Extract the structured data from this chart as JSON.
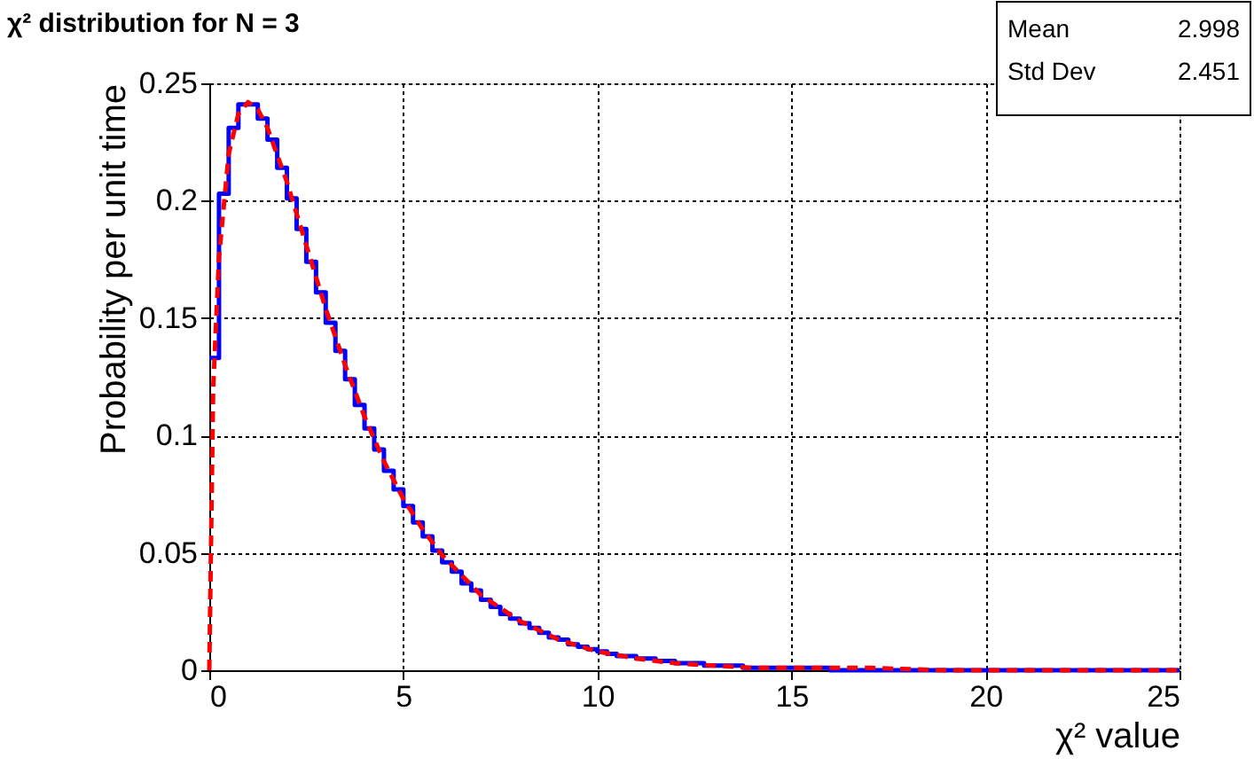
{
  "chart_data": {
    "type": "histogram",
    "title": "χ² distribution for N = 3",
    "xlabel": "χ² value",
    "ylabel": "Probability per unit time",
    "annotations": [
      "Mean 2.998",
      "Std Dev 2.451"
    ],
    "bins": [
      0,
      0.25,
      0.5,
      0.75,
      1,
      1.25,
      1.5,
      1.75,
      2,
      2.25,
      2.5,
      2.75,
      3,
      3.25,
      3.5,
      3.75,
      4,
      4.25,
      4.5,
      4.75,
      5,
      5.25,
      5.5,
      5.75,
      6,
      6.25,
      6.5,
      6.75,
      7,
      7.25,
      7.5,
      7.75,
      8,
      8.25,
      8.5,
      8.75,
      9,
      9.25,
      9.5,
      9.75,
      10,
      10.25,
      10.5,
      10.75,
      11,
      11.25,
      11.5,
      11.75,
      12,
      12.25,
      12.5,
      12.75,
      13,
      13.25,
      13.5,
      13.75,
      14,
      14.25,
      14.5,
      14.75,
      15,
      15.25,
      15.5,
      15.75,
      16,
      16.25,
      16.5,
      16.75,
      17,
      17.25,
      17.5,
      17.75,
      18,
      18.25,
      18.5,
      18.75,
      19,
      19.25,
      19.5,
      19.75,
      20,
      20.25,
      20.5,
      20.75,
      21,
      21.25,
      21.5,
      21.75,
      22,
      22.25,
      22.5,
      22.75,
      23,
      23.25,
      23.5,
      23.75,
      24,
      24.25,
      24.5,
      24.75,
      25
    ],
    "values": [
      0.133,
      0.203,
      0.231,
      0.241,
      0.241,
      0.235,
      0.226,
      0.214,
      0.201,
      0.188,
      0.174,
      0.161,
      0.148,
      0.136,
      0.124,
      0.113,
      0.103,
      0.094,
      0.085,
      0.077,
      0.07,
      0.063,
      0.057,
      0.051,
      0.046,
      0.042,
      0.037,
      0.034,
      0.03,
      0.027,
      0.024,
      0.022,
      0.02,
      0.018,
      0.016,
      0.014,
      0.013,
      0.011,
      0.01,
      0.009,
      0.008,
      0.007,
      0.006,
      0.006,
      0.005,
      0.005,
      0.004,
      0.004,
      0.003,
      0.003,
      0.003,
      0.002,
      0.002,
      0.002,
      0.002,
      0.001,
      0.001,
      0.001,
      0.001,
      0.001,
      0.001,
      0.001,
      0.001,
      0.001,
      0,
      0,
      0,
      0,
      0,
      0,
      0,
      0,
      0,
      0,
      0,
      0,
      0,
      0,
      0,
      0,
      0,
      0,
      0,
      0,
      0,
      0,
      0,
      0,
      0,
      0,
      0,
      0,
      0,
      0,
      0,
      0,
      0,
      0,
      0,
      0
    ],
    "color": "#0000ff",
    "series": [
      {
        "type": "line",
        "color": "#ff0000",
        "line_style": "dashed",
        "x": [
          0,
          0.1,
          0.25,
          0.5,
          0.75,
          1,
          1.25,
          1.5,
          2,
          2.5,
          3,
          3.5,
          4,
          4.5,
          5,
          5.5,
          6,
          7,
          8,
          9,
          10,
          11,
          12,
          13,
          14,
          15,
          17,
          19,
          21,
          23,
          25
        ],
        "values": [
          0,
          0.12,
          0.176,
          0.22,
          0.237,
          0.242,
          0.239,
          0.231,
          0.208,
          0.181,
          0.154,
          0.13,
          0.108,
          0.089,
          0.073,
          0.06,
          0.049,
          0.032,
          0.021,
          0.013,
          0.008,
          0.005,
          0.003,
          0.002,
          0.001,
          0.001,
          0.001,
          0,
          0,
          0,
          0
        ]
      }
    ],
    "xlim": [
      0,
      25
    ],
    "ylim": [
      0,
      0.25
    ],
    "xticks": [
      0,
      5,
      10,
      15,
      20,
      25
    ],
    "yticks": [
      0,
      0.05,
      0.1,
      0.15,
      0.2,
      0.25
    ],
    "grid": true,
    "marker": "none"
  }
}
